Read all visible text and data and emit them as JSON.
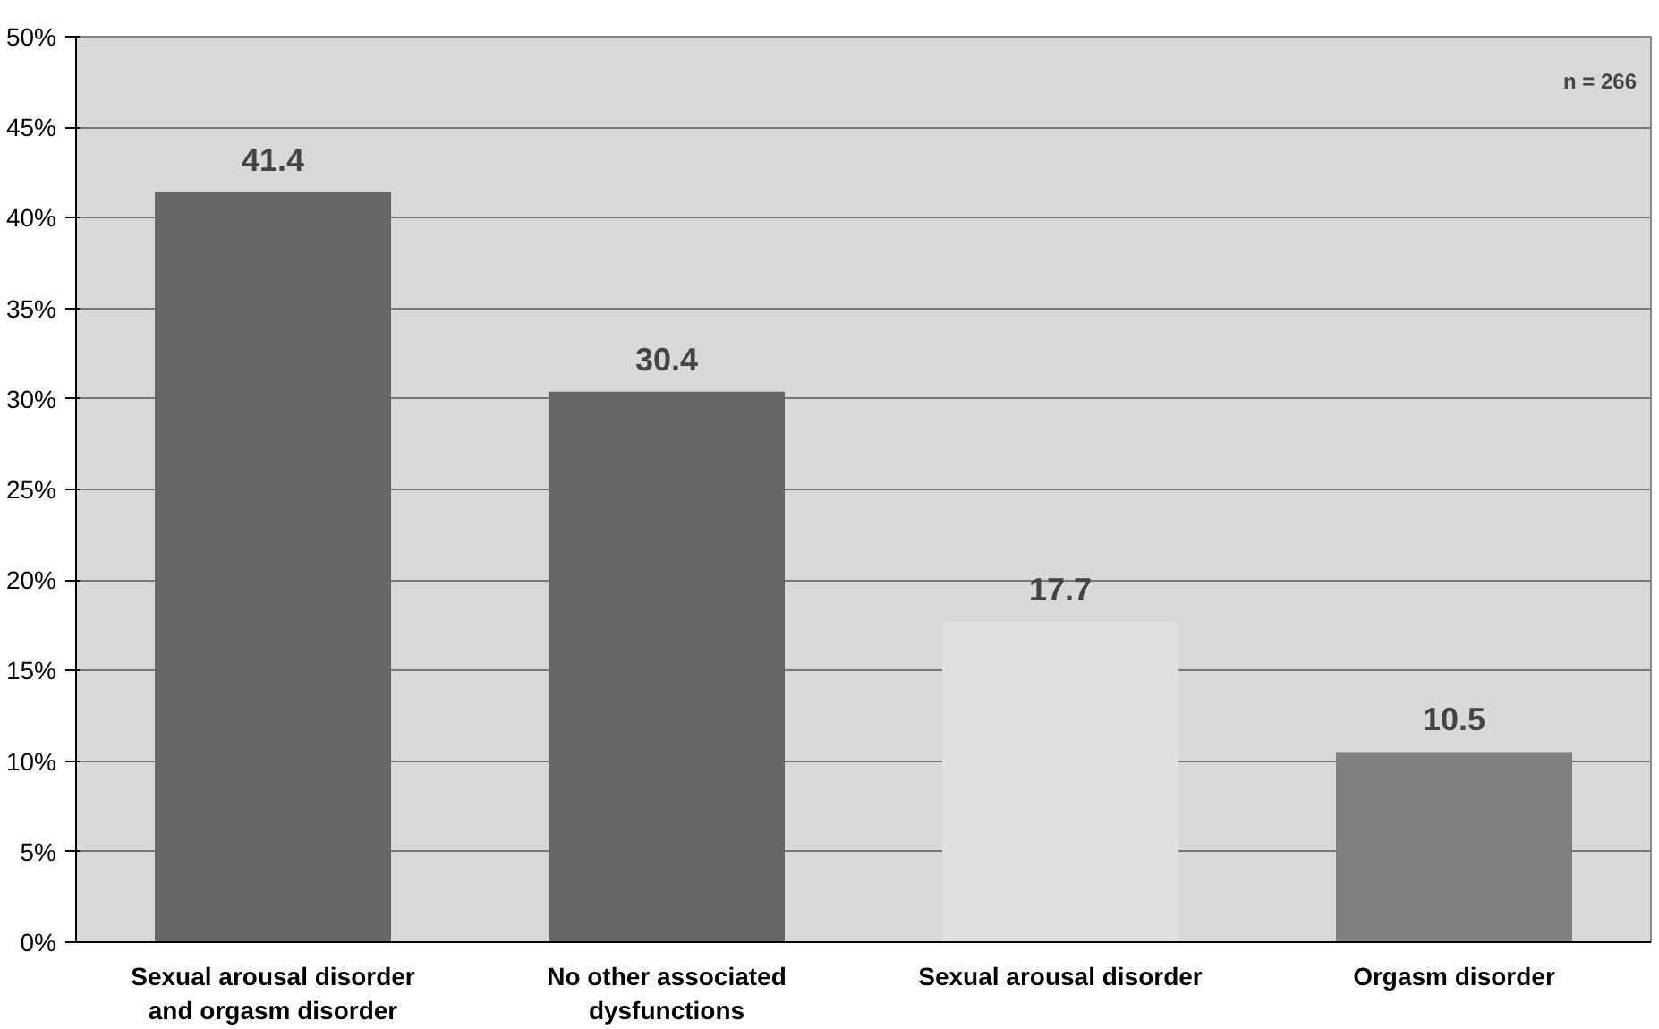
{
  "chart_data": {
    "type": "bar",
    "categories": [
      "Sexual arousal disorder\nand orgasm disorder",
      "No other associated\ndysfunctions",
      "Sexual arousal disorder",
      "Orgasm disorder"
    ],
    "values": [
      41.4,
      30.4,
      17.7,
      10.5
    ],
    "colors": [
      "#666666",
      "#666666",
      "#e0e0e0",
      "#808080"
    ],
    "ylim": [
      0,
      50
    ],
    "yticks": [
      {
        "value": 0,
        "label": "0%"
      },
      {
        "value": 5,
        "label": "5%"
      },
      {
        "value": 10,
        "label": "10%"
      },
      {
        "value": 15,
        "label": "15%"
      },
      {
        "value": 20,
        "label": "20%"
      },
      {
        "value": 25,
        "label": "25%"
      },
      {
        "value": 30,
        "label": "30%"
      },
      {
        "value": 35,
        "label": "35%"
      },
      {
        "value": 40,
        "label": "40%"
      },
      {
        "value": 45,
        "label": "45%"
      },
      {
        "value": 50,
        "label": "50%"
      }
    ],
    "grid": "y",
    "data_labels": true,
    "annotations": [
      "n = 266"
    ]
  }
}
